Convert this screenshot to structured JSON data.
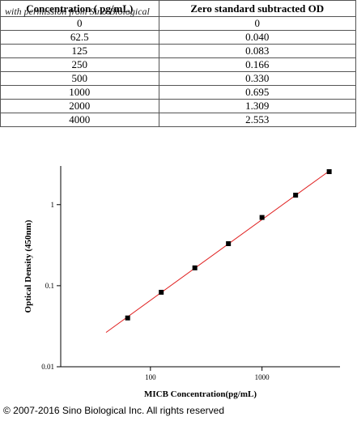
{
  "watermark": "with permission from Sino Biological",
  "table": {
    "header": [
      "Concentration ( pg/mL)",
      "Zero standard subtracted OD"
    ],
    "rows": [
      [
        "0",
        "0"
      ],
      [
        "62.5",
        "0.040"
      ],
      [
        "125",
        "0.083"
      ],
      [
        "250",
        "0.166"
      ],
      [
        "500",
        "0.330"
      ],
      [
        "1000",
        "0.695"
      ],
      [
        "2000",
        "1.309"
      ],
      [
        "4000",
        "2.553"
      ]
    ]
  },
  "chart_data": {
    "type": "scatter",
    "x_label": "MICB  Concentration(pg/mL)",
    "y_label": "Optical Density (450nm)",
    "x": [
      62.5,
      125,
      250,
      500,
      1000,
      2000,
      4000
    ],
    "values": [
      0.04,
      0.083,
      0.166,
      0.33,
      0.695,
      1.309,
      2.553
    ],
    "color": "#000000",
    "fit_line": {
      "color": "#e02020",
      "x": [
        40,
        4000
      ],
      "y": [
        0.0265,
        2.6
      ]
    },
    "log_x": true,
    "log_y": true,
    "xlim": [
      15.7,
      5000
    ],
    "ylim": [
      0.01,
      3
    ],
    "xticks": [
      100,
      1000
    ],
    "yticks": [
      0.01,
      0.1,
      1
    ]
  },
  "footer": "© 2007-2016 Sino Biological Inc. All rights reserved"
}
